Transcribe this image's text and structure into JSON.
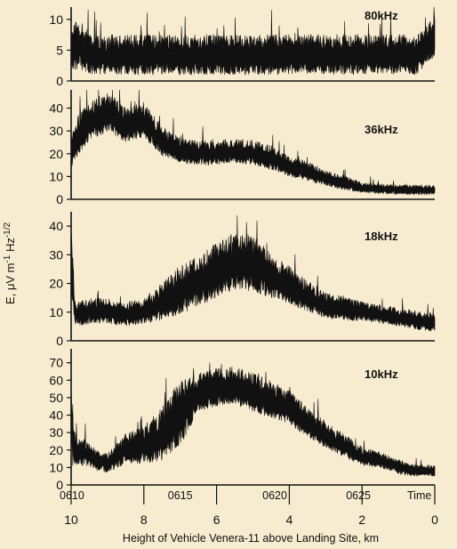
{
  "background": "#f8ecd0",
  "ink": "#111111",
  "chart_data": {
    "type": "line",
    "ylabel": "E, μV m⁻¹ Hz⁻¹ᐟ²",
    "ylabel_parts": {
      "main": "E, μV m",
      "exp1": "-1",
      "mid": " Hz",
      "exp2": "-1/2"
    },
    "xlabel": "Height of Vehicle Venera-11 above Landing Site, km",
    "x_height_ticks": [
      "10",
      "8",
      "6",
      "4",
      "2",
      "0"
    ],
    "x_height_values": [
      10,
      8,
      6,
      4,
      2,
      0
    ],
    "x_time_ticks": [
      "0610",
      "0615",
      "0620",
      "0625"
    ],
    "x_time_label": "Time",
    "xlim": [
      10,
      0
    ],
    "panels": [
      {
        "label": "80kHz",
        "ylim": [
          0,
          12
        ],
        "yticks": [
          0,
          5,
          10
        ],
        "height_km": [
          10,
          9.8,
          9.5,
          9,
          8,
          7,
          6,
          5,
          4,
          3,
          2,
          1,
          0.5,
          0
        ],
        "mean": [
          4.5,
          6,
          4,
          4,
          4,
          4,
          4,
          4,
          4,
          4,
          4,
          4,
          4,
          7
        ],
        "spread": [
          3,
          4,
          3,
          3,
          3,
          3,
          3,
          3,
          3,
          3,
          3,
          3,
          3,
          3
        ]
      },
      {
        "label": "36kHz",
        "ylim": [
          0,
          48
        ],
        "yticks": [
          0,
          10,
          20,
          30,
          40
        ],
        "height_km": [
          10,
          9.8,
          9.5,
          9.2,
          9,
          8.5,
          8,
          7.5,
          7,
          6.5,
          6,
          5.5,
          5,
          4.5,
          4,
          3.5,
          3,
          2.5,
          2,
          1,
          0
        ],
        "mean": [
          20,
          28,
          33,
          36,
          38,
          32,
          34,
          25,
          21,
          20,
          20,
          21,
          20,
          18,
          14,
          12,
          9,
          7,
          5,
          4,
          4
        ],
        "spread": [
          6,
          8,
          8,
          8,
          8,
          7,
          7,
          6,
          5,
          5,
          5,
          5,
          5,
          5,
          4,
          4,
          3,
          3,
          2,
          2,
          2
        ]
      },
      {
        "label": "18kHz",
        "ylim": [
          0,
          45
        ],
        "yticks": [
          0,
          10,
          20,
          30,
          40
        ],
        "height_km": [
          10,
          9.9,
          9.8,
          9.5,
          9,
          8.5,
          8,
          7.5,
          7,
          6.5,
          6,
          5.5,
          5,
          4.5,
          4,
          3.5,
          3,
          2.5,
          2,
          1.5,
          1,
          0.5,
          0
        ],
        "mean": [
          30,
          10,
          9,
          10,
          10,
          9,
          10,
          13,
          17,
          20,
          24,
          27,
          26,
          22,
          19,
          15,
          12,
          11,
          10,
          9,
          8,
          7,
          6
        ],
        "spread": [
          12,
          4,
          4,
          4,
          4,
          4,
          4,
          6,
          8,
          8,
          9,
          9,
          9,
          7,
          6,
          5,
          4,
          4,
          3,
          3,
          3,
          3,
          3
        ]
      },
      {
        "label": "10kHz",
        "ylim": [
          0,
          78
        ],
        "yticks": [
          0,
          10,
          20,
          30,
          40,
          50,
          60,
          70
        ],
        "height_km": [
          10,
          9.9,
          9.8,
          9.6,
          9.3,
          9,
          8.5,
          8,
          7.5,
          7,
          6.5,
          6,
          5.5,
          5,
          4.5,
          4,
          3.5,
          3,
          2.5,
          2,
          1.5,
          1,
          0.5,
          0
        ],
        "mean": [
          35,
          20,
          18,
          18,
          14,
          12,
          20,
          22,
          28,
          40,
          52,
          55,
          56,
          52,
          48,
          44,
          35,
          28,
          22,
          16,
          14,
          10,
          8,
          8
        ],
        "spread": [
          30,
          8,
          7,
          7,
          6,
          5,
          8,
          10,
          14,
          18,
          10,
          10,
          10,
          10,
          10,
          9,
          8,
          7,
          6,
          5,
          4,
          4,
          3,
          3
        ]
      }
    ]
  }
}
